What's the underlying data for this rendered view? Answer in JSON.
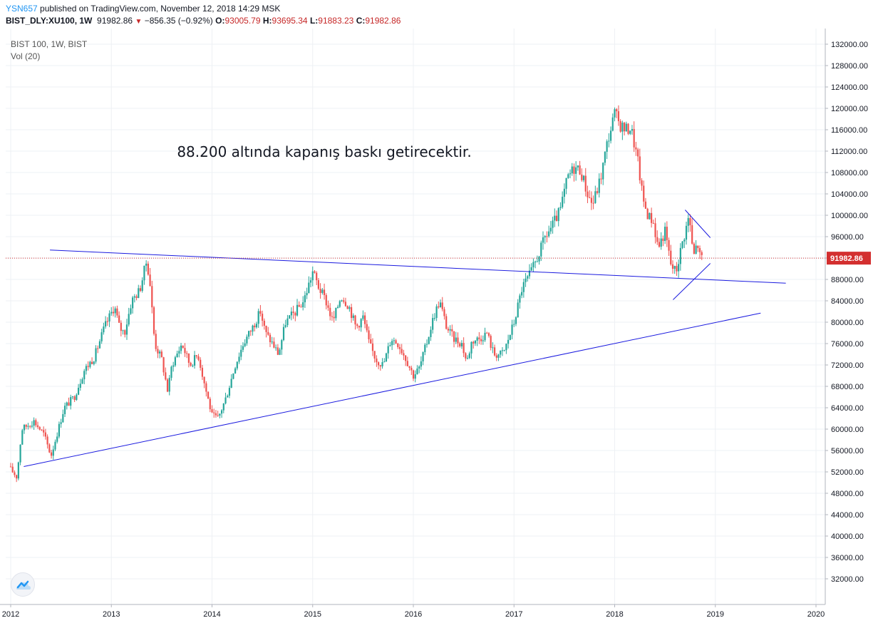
{
  "header": {
    "user": "YSN657",
    "published": "published on TradingView.com, November 12, 2018 14:29 MSK",
    "symbol": "BIST_DLY:XU100, 1W",
    "last": "91982.86",
    "change_arrow": "▼",
    "change": "−856.35 (−0.92%)",
    "o_label": "O:",
    "o_value": "93005.79",
    "h_label": "H:",
    "h_value": "93695.34",
    "l_label": "L:",
    "l_value": "91883.23",
    "c_label": "C:",
    "c_value": "91982.86"
  },
  "pane": {
    "title": "BIST 100, 1W, BIST",
    "indicator": "Vol (20)"
  },
  "colors": {
    "up": "#26a69a",
    "down": "#ef5350",
    "trendline": "#1a1adf",
    "price_line": "#d32f2f",
    "grid": "#eef0f4"
  },
  "chart_data": {
    "type": "candlestick",
    "timeframe": "1W",
    "annotation": "88.200 altında kapanış baskı getirecektir.",
    "last_price": 91982.86,
    "last_price_label": "91982.86",
    "y_ticks": [
      32000,
      36000,
      40000,
      44000,
      48000,
      52000,
      56000,
      60000,
      64000,
      68000,
      72000,
      76000,
      80000,
      84000,
      88000,
      92000,
      96000,
      100000,
      104000,
      108000,
      112000,
      116000,
      120000,
      124000,
      128000,
      132000
    ],
    "y_tick_labels": [
      "32000.00",
      "36000.00",
      "40000.00",
      "44000.00",
      "48000.00",
      "52000.00",
      "56000.00",
      "60000.00",
      "64000.00",
      "68000.00",
      "72000.00",
      "76000.00",
      "80000.00",
      "84000.00",
      "88000.00",
      "92000.00",
      "96000.00",
      "100000.00",
      "104000.00",
      "108000.00",
      "112000.00",
      "116000.00",
      "120000.00",
      "124000.00",
      "128000.00",
      "132000.00"
    ],
    "x_ticks": [
      2012,
      2013,
      2014,
      2015,
      2016,
      2017,
      2018,
      2019,
      2020
    ],
    "x_tick_labels": [
      "2012",
      "2013",
      "2014",
      "2015",
      "2016",
      "2017",
      "2018",
      "2019",
      "2020"
    ],
    "x_range": [
      2012.0,
      2020.2
    ],
    "y_range": [
      29500,
      135000
    ],
    "price_path": [
      [
        2012.0,
        53000
      ],
      [
        2012.08,
        51000
      ],
      [
        2012.13,
        60000
      ],
      [
        2012.25,
        61500
      ],
      [
        2012.35,
        59000
      ],
      [
        2012.42,
        55000
      ],
      [
        2012.55,
        64000
      ],
      [
        2012.65,
        66000
      ],
      [
        2012.75,
        71000
      ],
      [
        2012.85,
        73500
      ],
      [
        2012.95,
        79000
      ],
      [
        2013.05,
        83000
      ],
      [
        2013.1,
        79000
      ],
      [
        2013.15,
        78000
      ],
      [
        2013.22,
        84000
      ],
      [
        2013.3,
        86000
      ],
      [
        2013.37,
        91500
      ],
      [
        2013.4,
        88000
      ],
      [
        2013.45,
        76000
      ],
      [
        2013.52,
        73000
      ],
      [
        2013.58,
        67000
      ],
      [
        2013.62,
        72000
      ],
      [
        2013.72,
        76000
      ],
      [
        2013.8,
        72000
      ],
      [
        2013.88,
        74000
      ],
      [
        2013.95,
        68000
      ],
      [
        2014.02,
        62500
      ],
      [
        2014.08,
        62000
      ],
      [
        2014.16,
        66000
      ],
      [
        2014.25,
        72000
      ],
      [
        2014.33,
        76000
      ],
      [
        2014.42,
        79000
      ],
      [
        2014.5,
        82000
      ],
      [
        2014.55,
        78000
      ],
      [
        2014.62,
        76000
      ],
      [
        2014.68,
        74000
      ],
      [
        2014.75,
        80000
      ],
      [
        2014.85,
        82000
      ],
      [
        2014.93,
        84000
      ],
      [
        2015.02,
        89500
      ],
      [
        2015.08,
        86500
      ],
      [
        2015.15,
        84000
      ],
      [
        2015.22,
        80000
      ],
      [
        2015.3,
        85000
      ],
      [
        2015.38,
        83000
      ],
      [
        2015.45,
        79000
      ],
      [
        2015.52,
        81000
      ],
      [
        2015.58,
        76000
      ],
      [
        2015.65,
        73000
      ],
      [
        2015.72,
        72000
      ],
      [
        2015.8,
        77000
      ],
      [
        2015.87,
        76000
      ],
      [
        2015.95,
        73000
      ],
      [
        2016.02,
        70000
      ],
      [
        2016.08,
        71500
      ],
      [
        2016.15,
        76000
      ],
      [
        2016.22,
        81000
      ],
      [
        2016.28,
        84000
      ],
      [
        2016.35,
        79000
      ],
      [
        2016.42,
        77000
      ],
      [
        2016.5,
        76000
      ],
      [
        2016.55,
        72500
      ],
      [
        2016.6,
        76500
      ],
      [
        2016.68,
        77000
      ],
      [
        2016.75,
        78000
      ],
      [
        2016.82,
        74000
      ],
      [
        2016.88,
        74000
      ],
      [
        2016.92,
        74500
      ],
      [
        2017.02,
        80000
      ],
      [
        2017.1,
        86500
      ],
      [
        2017.18,
        89000
      ],
      [
        2017.25,
        92000
      ],
      [
        2017.33,
        96000
      ],
      [
        2017.4,
        98000
      ],
      [
        2017.48,
        101000
      ],
      [
        2017.55,
        107000
      ],
      [
        2017.62,
        109000
      ],
      [
        2017.68,
        108500
      ],
      [
        2017.75,
        104000
      ],
      [
        2017.8,
        102000
      ],
      [
        2017.88,
        107000
      ],
      [
        2017.95,
        114000
      ],
      [
        2018.02,
        119000
      ],
      [
        2018.07,
        117000
      ],
      [
        2018.13,
        116000
      ],
      [
        2018.18,
        116500
      ],
      [
        2018.25,
        110000
      ],
      [
        2018.3,
        103000
      ],
      [
        2018.35,
        100000
      ],
      [
        2018.4,
        99000
      ],
      [
        2018.45,
        94000
      ],
      [
        2018.52,
        97000
      ],
      [
        2018.58,
        90500
      ],
      [
        2018.63,
        89500
      ],
      [
        2018.68,
        94000
      ],
      [
        2018.72,
        97000
      ],
      [
        2018.76,
        100000
      ],
      [
        2018.8,
        92000
      ],
      [
        2018.84,
        95000
      ],
      [
        2018.87,
        91983
      ]
    ],
    "trendlines": [
      {
        "from": [
          2012.39,
          93500
        ],
        "to": [
          2019.7,
          87300
        ]
      },
      {
        "from": [
          2012.13,
          53000
        ],
        "to": [
          2019.45,
          81700
        ]
      },
      {
        "from": [
          2018.7,
          101000
        ],
        "to": [
          2018.95,
          95800
        ]
      },
      {
        "from": [
          2018.58,
          84200
        ],
        "to": [
          2018.95,
          91000
        ]
      }
    ]
  }
}
